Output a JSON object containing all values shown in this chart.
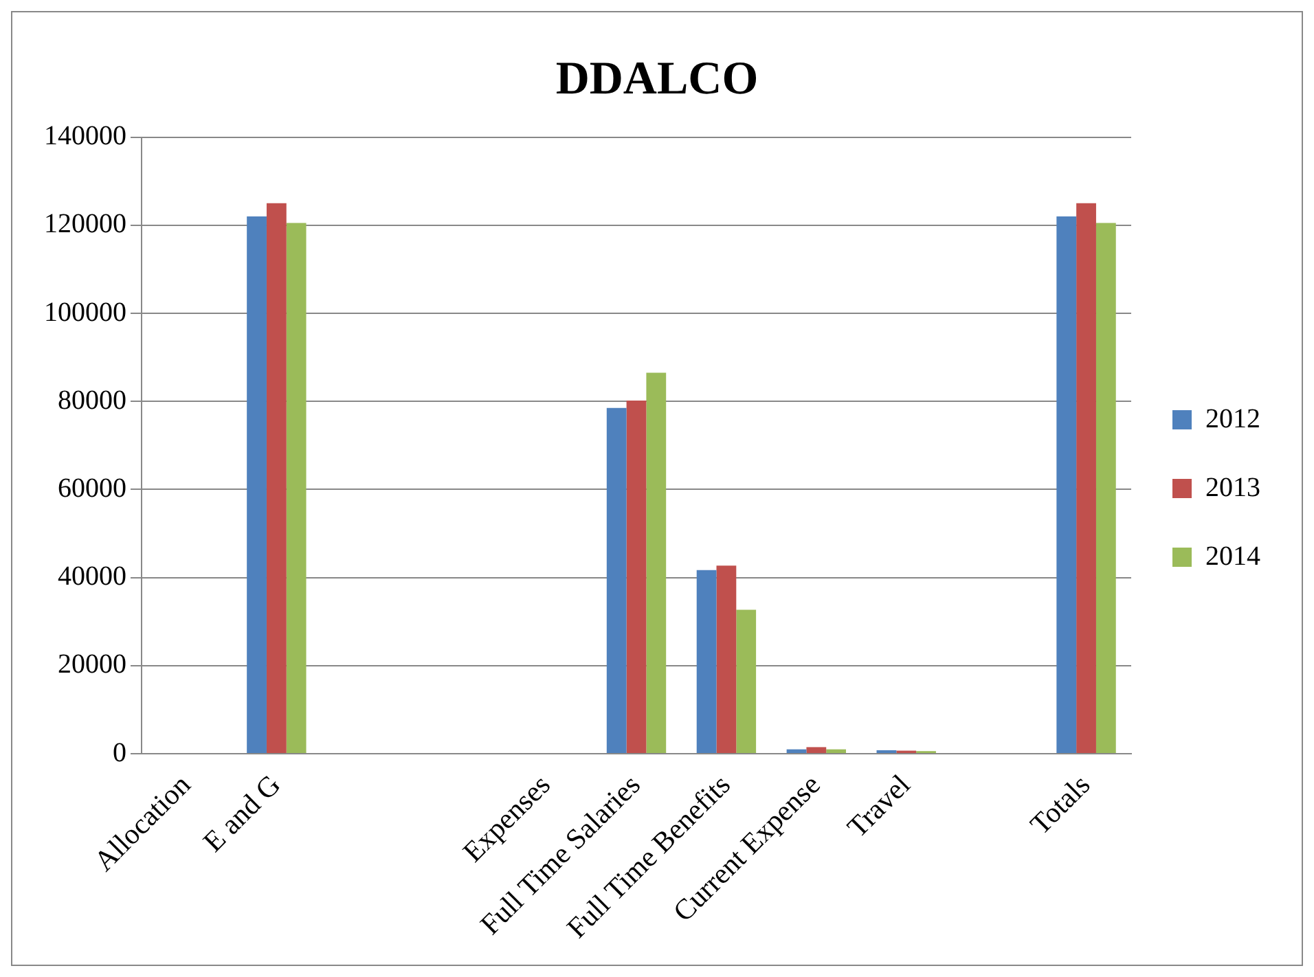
{
  "chart_data": {
    "type": "bar",
    "title": "DDALCO",
    "categories": [
      "Allocation",
      "E and G",
      null,
      null,
      "Expenses",
      "Full Time Salaries",
      "Full Time Benefits",
      "Current Expense",
      "Travel",
      null,
      "Totals"
    ],
    "series": [
      {
        "name": "2012",
        "color": "#4f81bd",
        "values": [
          null,
          122000,
          null,
          null,
          null,
          78500,
          41700,
          1000,
          800,
          null,
          122000
        ]
      },
      {
        "name": "2013",
        "color": "#c0504d",
        "values": [
          null,
          125000,
          null,
          null,
          null,
          80200,
          42700,
          1500,
          700,
          null,
          125000
        ]
      },
      {
        "name": "2014",
        "color": "#9bbb59",
        "values": [
          null,
          120500,
          null,
          null,
          null,
          86500,
          32700,
          1000,
          600,
          null,
          120500
        ]
      }
    ],
    "ylim": [
      0,
      140000
    ],
    "yticks": [
      0,
      20000,
      40000,
      60000,
      80000,
      100000,
      120000,
      140000
    ],
    "grid": "y",
    "legend": "right"
  }
}
